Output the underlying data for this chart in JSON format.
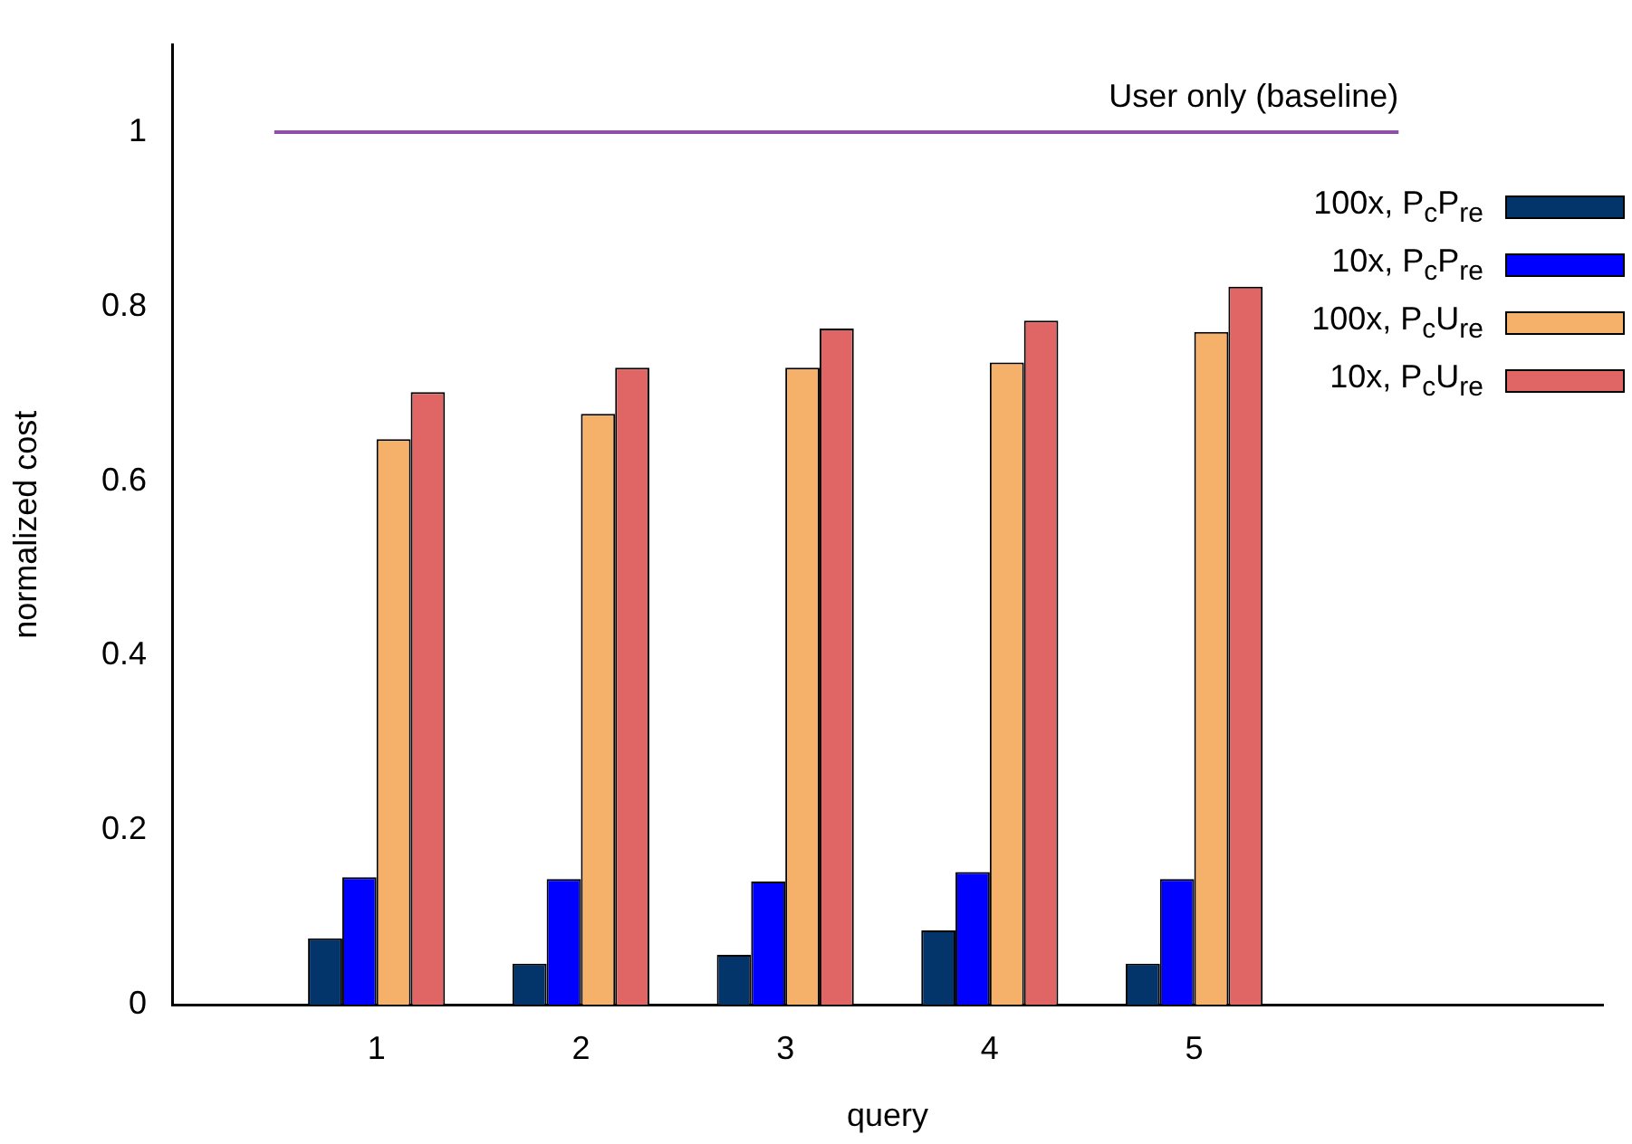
{
  "chart_data": {
    "type": "bar",
    "xlabel": "query",
    "ylabel": "normalized cost",
    "x": [
      1,
      2,
      3,
      4,
      5
    ],
    "xlim": [
      0,
      7
    ],
    "xticks": [
      1,
      2,
      3,
      4,
      5
    ],
    "ylim": [
      0,
      1.1
    ],
    "yticks": [
      0,
      0.2,
      0.4,
      0.6,
      0.8,
      1
    ],
    "grid": false,
    "legend": "top right",
    "marker": "none",
    "series": [
      {
        "name": "100x, P$_{c}$P$_{re}$",
        "color": "#03356b",
        "values": [
          0.076,
          0.047,
          0.057,
          0.085,
          0.047
        ]
      },
      {
        "name": "10x, P$_{c}$P$_{re}$",
        "color": "#0000ff",
        "values": [
          0.146,
          0.144,
          0.141,
          0.152,
          0.144
        ]
      },
      {
        "name": "100x, P$_{c}$U$_{re}$",
        "color": "#f5b06a",
        "values": [
          0.648,
          0.677,
          0.73,
          0.736,
          0.771
        ]
      },
      {
        "name": "10x, P$_{c}$U$_{re}$",
        "color": "#e06666",
        "values": [
          0.702,
          0.73,
          0.775,
          0.784,
          0.823
        ]
      },
      {
        "name": "User only (baseline)",
        "type": "line",
        "color": "#8e4fa6",
        "x": [
          0.5,
          6
        ],
        "values": [
          1,
          1
        ]
      }
    ]
  }
}
